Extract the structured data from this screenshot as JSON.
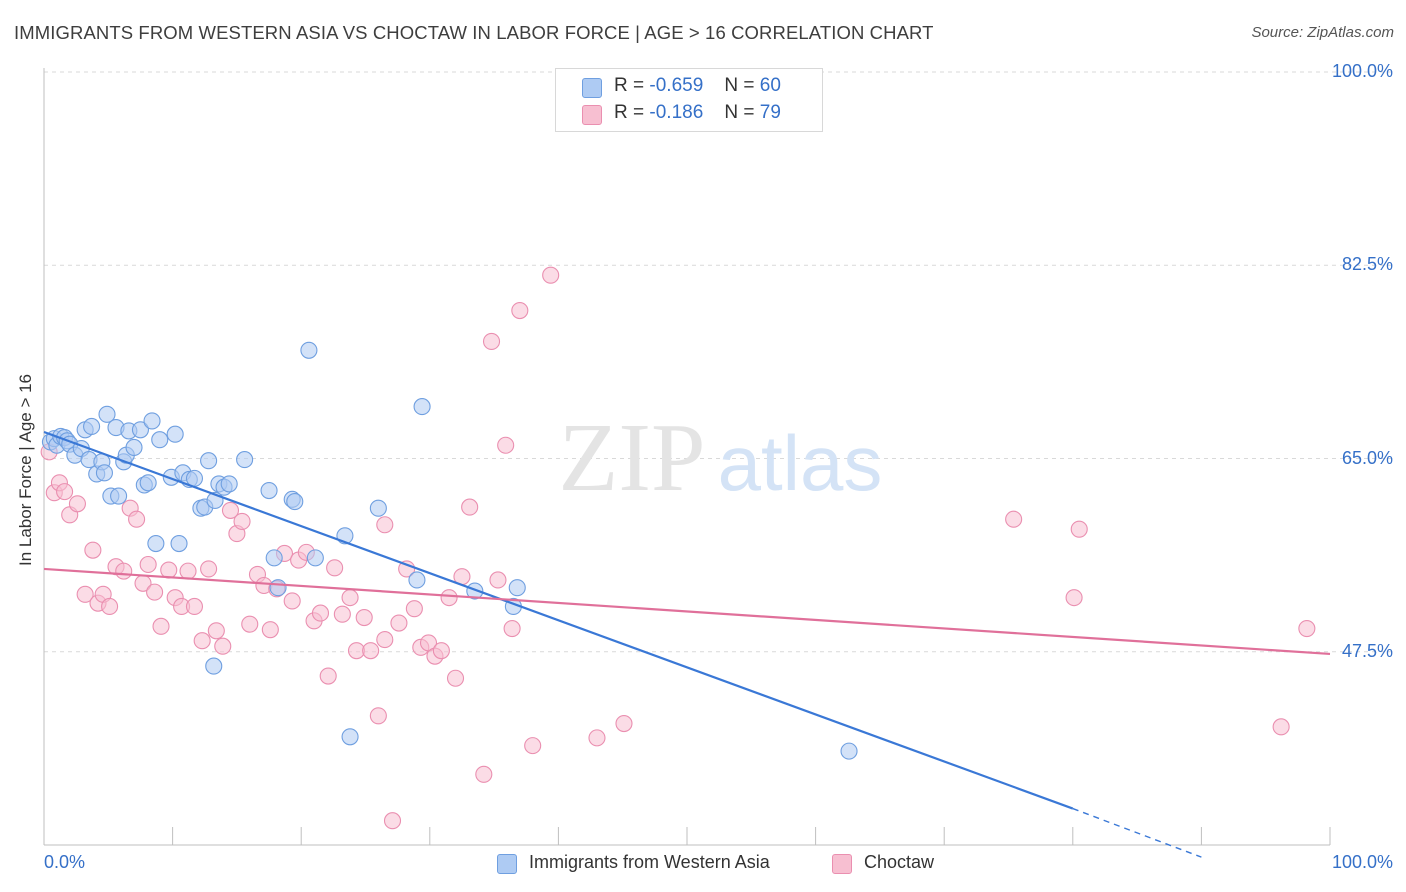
{
  "header": {
    "title": "IMMIGRANTS FROM WESTERN ASIA VS CHOCTAW IN LABOR FORCE | AGE > 16 CORRELATION CHART",
    "source": "Source: ZipAtlas.com"
  },
  "watermark": {
    "zip": "ZIP",
    "atlas": "atlas"
  },
  "legend_top": {
    "rows": [
      {
        "r_label": "R =",
        "r_value": "-0.659",
        "n_label": "N =",
        "n_value": "60"
      },
      {
        "r_label": "R =",
        "r_value": "-0.186",
        "n_label": "N =",
        "n_value": "79"
      }
    ]
  },
  "legend_bottom": {
    "items": [
      {
        "label": "Immigrants from Western Asia"
      },
      {
        "label": "Choctaw"
      }
    ]
  },
  "colors": {
    "blue_fill": "#aecbf3",
    "blue_stroke": "#6f9fe0",
    "blue_line": "#3a78d6",
    "pink_fill": "#f7bfd1",
    "pink_stroke": "#ea8fb0",
    "pink_line": "#e0709a",
    "axis_text": "#3570c8",
    "grid": "#d9d9d9"
  },
  "chart_data": {
    "type": "scatter",
    "title": "IMMIGRANTS FROM WESTERN ASIA VS CHOCTAW IN LABOR FORCE | AGE > 16 CORRELATION CHART",
    "xlabel": "",
    "ylabel": "In Labor Force | Age > 16",
    "xlim": [
      0,
      100
    ],
    "ylim": [
      30,
      100
    ],
    "x_tick_labels": [
      "0.0%",
      "100.0%"
    ],
    "y_ticks": [
      47.5,
      65.0,
      82.5,
      100.0
    ],
    "y_tick_labels": [
      "47.5%",
      "65.0%",
      "82.5%",
      "100.0%"
    ],
    "grid": true,
    "legend_position": "top-center",
    "series": [
      {
        "name": "Immigrants from Western Asia",
        "color": "#6f9fe0",
        "r": -0.659,
        "n": 60,
        "trend": {
          "x0": 0,
          "y0": 67.4,
          "x1": 80,
          "y1": 33.3,
          "dashed_to": {
            "x": 90,
            "y": 28.9
          }
        },
        "points": [
          [
            0.5,
            66.5
          ],
          [
            0.8,
            66.8
          ],
          [
            1.0,
            66.2
          ],
          [
            1.3,
            67.0
          ],
          [
            1.6,
            66.9
          ],
          [
            1.8,
            66.6
          ],
          [
            2.0,
            66.3
          ],
          [
            2.4,
            65.3
          ],
          [
            2.9,
            65.9
          ],
          [
            3.2,
            67.6
          ],
          [
            3.5,
            64.9
          ],
          [
            3.7,
            67.9
          ],
          [
            4.1,
            63.6
          ],
          [
            4.5,
            64.7
          ],
          [
            4.7,
            63.7
          ],
          [
            4.9,
            69.0
          ],
          [
            5.2,
            61.6
          ],
          [
            5.6,
            67.8
          ],
          [
            5.8,
            61.6
          ],
          [
            6.2,
            64.7
          ],
          [
            6.4,
            65.3
          ],
          [
            6.6,
            67.5
          ],
          [
            7.0,
            66.0
          ],
          [
            7.5,
            67.6
          ],
          [
            7.8,
            62.6
          ],
          [
            8.1,
            62.8
          ],
          [
            8.4,
            68.4
          ],
          [
            8.7,
            57.3
          ],
          [
            9.0,
            66.7
          ],
          [
            9.9,
            63.3
          ],
          [
            10.2,
            67.2
          ],
          [
            10.5,
            57.3
          ],
          [
            10.8,
            63.7
          ],
          [
            11.3,
            63.1
          ],
          [
            11.7,
            63.2
          ],
          [
            12.2,
            60.5
          ],
          [
            12.5,
            60.6
          ],
          [
            12.8,
            64.8
          ],
          [
            13.3,
            61.2
          ],
          [
            13.6,
            62.7
          ],
          [
            14.0,
            62.4
          ],
          [
            14.4,
            62.7
          ],
          [
            15.6,
            64.9
          ],
          [
            17.5,
            62.1
          ],
          [
            17.9,
            56.0
          ],
          [
            18.2,
            53.3
          ],
          [
            19.3,
            61.3
          ],
          [
            19.5,
            61.1
          ],
          [
            20.6,
            74.8
          ],
          [
            21.1,
            56.0
          ],
          [
            23.4,
            58.0
          ],
          [
            23.8,
            39.8
          ],
          [
            26.0,
            60.5
          ],
          [
            29.0,
            54.0
          ],
          [
            29.4,
            69.7
          ],
          [
            33.5,
            53.0
          ],
          [
            36.8,
            53.3
          ],
          [
            13.2,
            46.2
          ],
          [
            36.5,
            51.6
          ],
          [
            62.6,
            38.5
          ]
        ]
      },
      {
        "name": "Choctaw",
        "color": "#ea8fb0",
        "r": -0.186,
        "n": 79,
        "trend": {
          "x0": 0,
          "y0": 55.0,
          "x1": 100,
          "y1": 47.3
        },
        "points": [
          [
            0.4,
            65.6
          ],
          [
            0.8,
            61.9
          ],
          [
            1.2,
            62.8
          ],
          [
            1.6,
            62.0
          ],
          [
            2.0,
            59.9
          ],
          [
            2.6,
            60.9
          ],
          [
            3.2,
            52.7
          ],
          [
            3.8,
            56.7
          ],
          [
            4.2,
            51.9
          ],
          [
            4.6,
            52.7
          ],
          [
            5.1,
            51.6
          ],
          [
            5.6,
            55.2
          ],
          [
            6.2,
            54.8
          ],
          [
            6.7,
            60.5
          ],
          [
            7.2,
            59.5
          ],
          [
            7.7,
            53.7
          ],
          [
            8.1,
            55.4
          ],
          [
            8.6,
            52.9
          ],
          [
            9.1,
            49.8
          ],
          [
            9.7,
            54.9
          ],
          [
            10.2,
            52.4
          ],
          [
            10.7,
            51.6
          ],
          [
            11.2,
            54.8
          ],
          [
            11.7,
            51.6
          ],
          [
            12.3,
            48.5
          ],
          [
            12.8,
            55.0
          ],
          [
            13.4,
            49.4
          ],
          [
            13.9,
            48.0
          ],
          [
            14.5,
            60.3
          ],
          [
            15.0,
            58.2
          ],
          [
            15.4,
            59.3
          ],
          [
            16.0,
            50.0
          ],
          [
            16.6,
            54.5
          ],
          [
            17.1,
            53.5
          ],
          [
            17.6,
            49.5
          ],
          [
            18.1,
            53.2
          ],
          [
            18.7,
            56.4
          ],
          [
            19.3,
            52.1
          ],
          [
            19.8,
            55.8
          ],
          [
            20.4,
            56.5
          ],
          [
            21.0,
            50.3
          ],
          [
            21.5,
            51.0
          ],
          [
            22.1,
            45.3
          ],
          [
            22.6,
            55.1
          ],
          [
            23.2,
            50.9
          ],
          [
            23.8,
            52.4
          ],
          [
            24.3,
            47.6
          ],
          [
            24.9,
            50.6
          ],
          [
            25.4,
            47.6
          ],
          [
            26.0,
            41.7
          ],
          [
            26.5,
            48.6
          ],
          [
            27.1,
            32.2
          ],
          [
            27.6,
            50.1
          ],
          [
            28.2,
            55.0
          ],
          [
            28.8,
            51.4
          ],
          [
            29.3,
            47.9
          ],
          [
            29.9,
            48.3
          ],
          [
            30.4,
            47.1
          ],
          [
            30.9,
            47.6
          ],
          [
            31.5,
            52.4
          ],
          [
            32.0,
            45.1
          ],
          [
            32.5,
            54.3
          ],
          [
            33.1,
            60.6
          ],
          [
            34.2,
            36.4
          ],
          [
            34.8,
            75.6
          ],
          [
            35.3,
            54.0
          ],
          [
            35.9,
            66.2
          ],
          [
            36.4,
            49.6
          ],
          [
            37.0,
            78.4
          ],
          [
            38.0,
            39.0
          ],
          [
            39.4,
            81.6
          ],
          [
            43.0,
            39.7
          ],
          [
            45.1,
            41.0
          ],
          [
            75.4,
            59.5
          ],
          [
            80.1,
            52.4
          ],
          [
            80.5,
            58.6
          ],
          [
            96.2,
            40.7
          ],
          [
            98.2,
            49.6
          ],
          [
            26.5,
            59.0
          ]
        ]
      }
    ]
  }
}
